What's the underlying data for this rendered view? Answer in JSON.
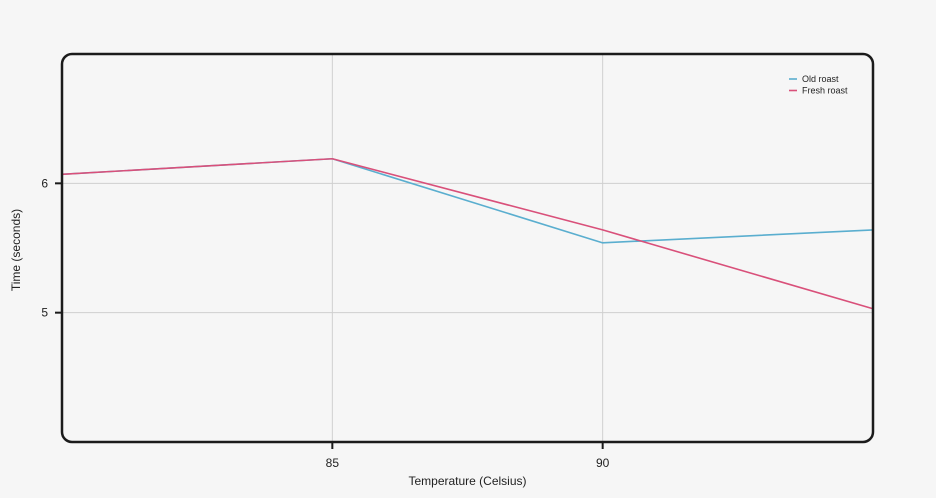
{
  "chart_data": {
    "type": "line",
    "xlabel": "Temperature (Celsius)",
    "ylabel": "Time (seconds)",
    "xlim": [
      80,
      95
    ],
    "ylim": [
      4,
      7
    ],
    "x_ticks": [
      85,
      90
    ],
    "y_ticks": [
      5,
      6
    ],
    "grid": true,
    "legend_position": "top-right",
    "series": [
      {
        "name": "Old roast",
        "color": "#5aaecf",
        "x": [
          80,
          85,
          90,
          95
        ],
        "y": [
          6.07,
          6.19,
          5.54,
          5.64
        ]
      },
      {
        "name": "Fresh roast",
        "color": "#d9507a",
        "x": [
          80,
          85,
          90,
          95
        ],
        "y": [
          6.07,
          6.19,
          5.64,
          5.03
        ]
      }
    ]
  }
}
